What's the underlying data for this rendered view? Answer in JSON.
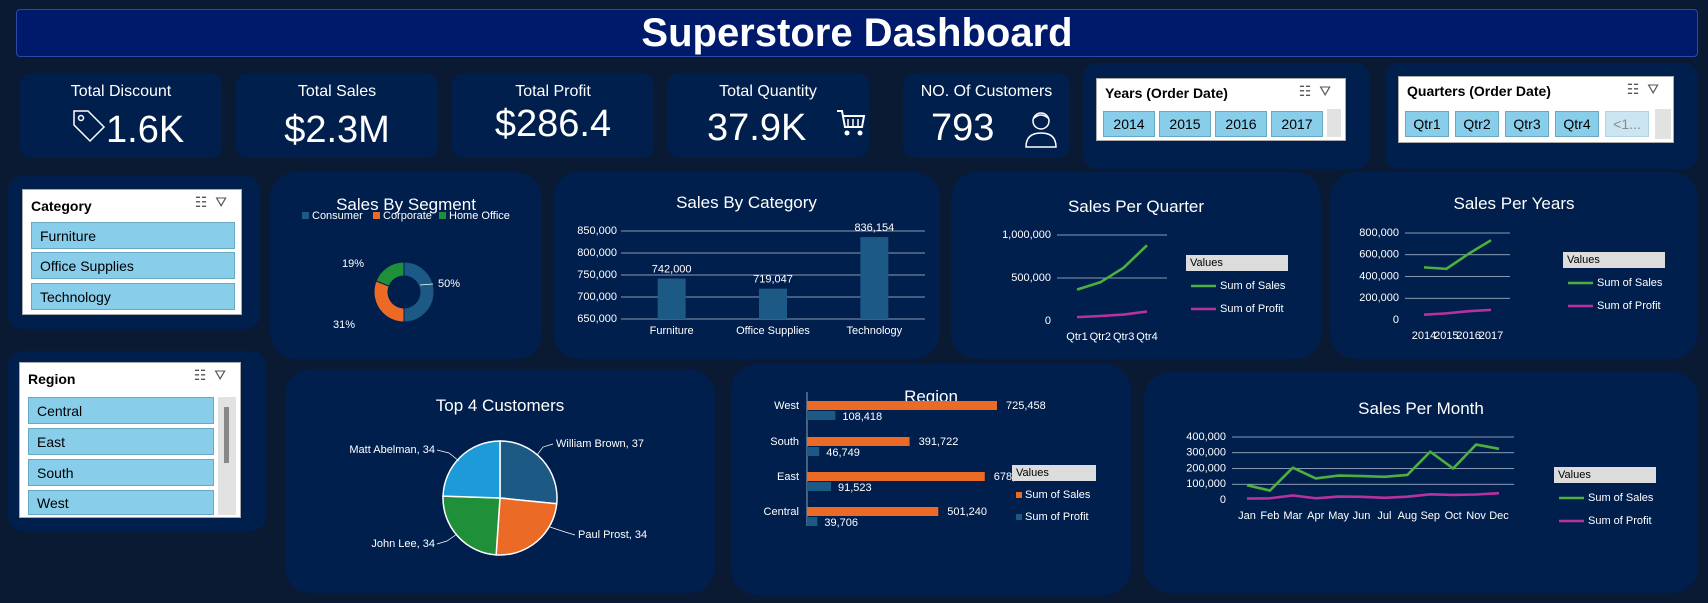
{
  "title": "Superstore Dashboard",
  "kpis": [
    {
      "label": "Total Discount",
      "value": "1.6K",
      "icon": "tag-icon"
    },
    {
      "label": "Total Sales",
      "value": "$2.3M"
    },
    {
      "label": "Total Profit",
      "value": "$286.4"
    },
    {
      "label": "Total Quantity",
      "value": "37.9K",
      "icon": "cart-icon"
    },
    {
      "label": "NO. Of Customers",
      "value": "793",
      "icon": "user-icon"
    }
  ],
  "slicers": {
    "years": {
      "title": "Years (Order Date)",
      "items": [
        "2014",
        "2015",
        "2016",
        "2017"
      ]
    },
    "quarters": {
      "title": "Quarters (Order Date)",
      "items": [
        "Qtr1",
        "Qtr2",
        "Qtr3",
        "Qtr4",
        "<1..."
      ]
    },
    "category": {
      "title": "Category",
      "items": [
        "Furniture",
        "Office Supplies",
        "Technology"
      ]
    },
    "region": {
      "title": "Region",
      "items": [
        "Central",
        "East",
        "South",
        "West"
      ]
    }
  },
  "legend_title": "Values",
  "colors": {
    "sales_line": "#4caf3f",
    "profit_line": "#b7329f",
    "bar_blue": "#1c5a85",
    "bar_orange": "#ea6a26",
    "consumer": "#1c5a85",
    "corporate": "#ea6a26",
    "home_office": "#208f3a"
  },
  "chart_data": [
    {
      "id": "segment",
      "type": "pie",
      "title": "Sales By Segment",
      "categories": [
        "Consumer",
        "Corporate",
        "Home Office"
      ],
      "values": [
        50,
        31,
        19
      ],
      "labels": [
        "50%",
        "31%",
        "19%"
      ],
      "legend": "top"
    },
    {
      "id": "category",
      "type": "bar",
      "title": "Sales By Category",
      "categories": [
        "Furniture",
        "Office Supplies",
        "Technology"
      ],
      "values": [
        742000,
        719047,
        836154
      ],
      "labels": [
        "742,000",
        "719,047",
        "836,154"
      ],
      "yticks": [
        "650,000",
        "700,000",
        "750,000",
        "800,000",
        "850,000"
      ],
      "ylim": [
        650000,
        850000
      ]
    },
    {
      "id": "quarter",
      "type": "line",
      "title": "Sales Per Quarter",
      "categories": [
        "Qtr1",
        "Qtr2",
        "Qtr3",
        "Qtr4"
      ],
      "series": [
        {
          "name": "Sum of Sales",
          "values": [
            365000,
            450000,
            620000,
            880000
          ]
        },
        {
          "name": "Sum of Profit",
          "values": [
            45000,
            58000,
            75000,
            110000
          ]
        }
      ],
      "yticks": [
        "0",
        "500,000",
        "1,000,000"
      ],
      "ylim": [
        0,
        1000000
      ]
    },
    {
      "id": "years",
      "type": "line",
      "title": "Sales Per Years",
      "categories": [
        "2014",
        "2015",
        "2016",
        "2017"
      ],
      "series": [
        {
          "name": "Sum of Sales",
          "values": [
            484000,
            470000,
            609000,
            733000
          ]
        },
        {
          "name": "Sum of Profit",
          "values": [
            49000,
            61000,
            81000,
            93000
          ]
        }
      ],
      "yticks": [
        "0",
        "200,000",
        "400,000",
        "600,000",
        "800,000"
      ],
      "ylim": [
        0,
        800000
      ]
    },
    {
      "id": "customers",
      "type": "pie",
      "title": "Top 4 Customers",
      "categories": [
        "William Brown",
        "Paul Prost",
        "John Lee",
        "Matt Abelman"
      ],
      "values": [
        37,
        34,
        34,
        34
      ],
      "labels": [
        "William Brown, 37",
        "Paul Prost, 34",
        "John Lee, 34",
        "Matt Abelman, 34"
      ]
    },
    {
      "id": "region",
      "type": "bar",
      "orientation": "horizontal",
      "title": "Region",
      "categories": [
        "West",
        "South",
        "East",
        "Central"
      ],
      "series": [
        {
          "name": "Sum of Sales",
          "values": [
            725458,
            391722,
            678781,
            501240
          ],
          "labels": [
            "725,458",
            "391,722",
            "678,781",
            "501,240"
          ]
        },
        {
          "name": "Sum of Profit",
          "values": [
            108418,
            46749,
            91523,
            39706
          ],
          "labels": [
            "108,418",
            "46,749",
            "91,523",
            "39,706"
          ]
        }
      ]
    },
    {
      "id": "month",
      "type": "line",
      "title": "Sales Per Month",
      "categories": [
        "Jan",
        "Feb",
        "Mar",
        "Apr",
        "May",
        "Jun",
        "Jul",
        "Aug",
        "Sep",
        "Oct",
        "Nov",
        "Dec"
      ],
      "series": [
        {
          "name": "Sum of Sales",
          "values": [
            94000,
            60000,
            205000,
            137000,
            155000,
            152000,
            147000,
            159000,
            307000,
            200000,
            352000,
            325000
          ]
        },
        {
          "name": "Sum of Profit",
          "values": [
            9000,
            11000,
            29000,
            11000,
            22000,
            20000,
            14000,
            21000,
            36000,
            32000,
            35000,
            43000
          ]
        }
      ],
      "yticks": [
        "0",
        "100,000",
        "200,000",
        "300,000",
        "400,000"
      ],
      "ylim": [
        0,
        400000
      ]
    }
  ]
}
